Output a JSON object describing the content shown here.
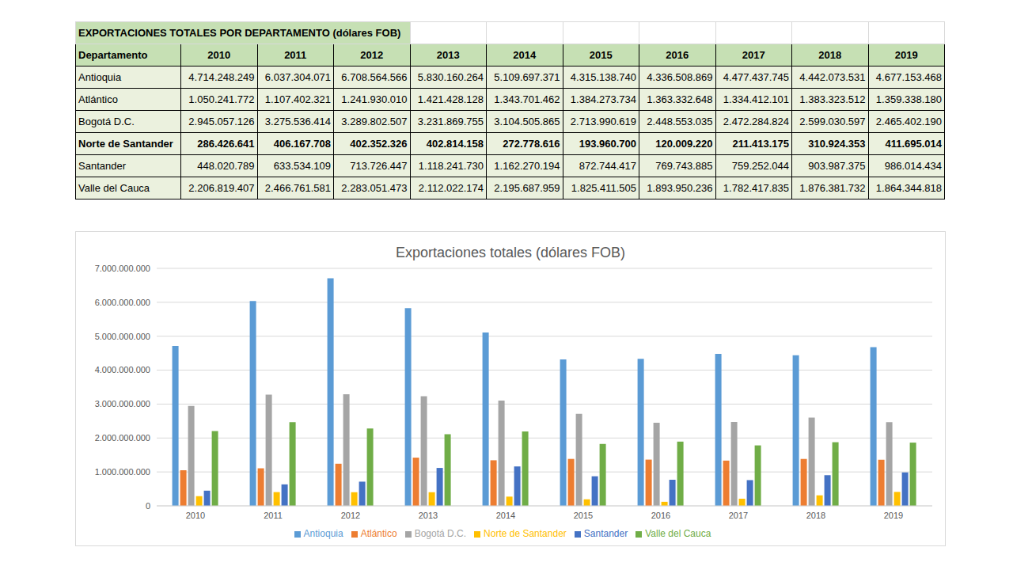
{
  "table": {
    "title": "EXPORTACIONES TOTALES POR DEPARTAMENTO (dólares FOB)",
    "header": [
      "Departamento",
      "2010",
      "2011",
      "2012",
      "2013",
      "2014",
      "2015",
      "2016",
      "2017",
      "2018",
      "2019"
    ],
    "rows": [
      {
        "cells": [
          "Antioquia",
          "4.714.248.249",
          "6.037.304.071",
          "6.708.564.566",
          "5.830.160.264",
          "5.109.697.371",
          "4.315.138.740",
          "4.336.508.869",
          "4.477.437.745",
          "4.442.073.531",
          "4.677.153.468"
        ],
        "bold": false
      },
      {
        "cells": [
          "Atlántico",
          "1.050.241.772",
          "1.107.402.321",
          "1.241.930.010",
          "1.421.428.128",
          "1.343.701.462",
          "1.384.273.734",
          "1.363.332.648",
          "1.334.412.101",
          "1.383.323.512",
          "1.359.338.180"
        ],
        "bold": false
      },
      {
        "cells": [
          "Bogotá D.C.",
          "2.945.057.126",
          "3.275.536.414",
          "3.289.802.507",
          "3.231.869.755",
          "3.104.505.865",
          "2.713.990.619",
          "2.448.553.035",
          "2.472.284.824",
          "2.599.030.597",
          "2.465.402.190"
        ],
        "bold": false
      },
      {
        "cells": [
          "Norte de Santander",
          "286.426.641",
          "406.167.708",
          "402.352.326",
          "402.814.158",
          "272.778.616",
          "193.960.700",
          "120.009.220",
          "211.413.175",
          "310.924.353",
          "411.695.014"
        ],
        "bold": true
      },
      {
        "cells": [
          "Santander",
          "448.020.789",
          "633.534.109",
          "713.726.447",
          "1.118.241.730",
          "1.162.270.194",
          "872.744.417",
          "769.743.885",
          "759.252.044",
          "903.987.375",
          "986.014.434"
        ],
        "bold": false
      },
      {
        "cells": [
          "Valle del Cauca",
          "2.206.819.407",
          "2.466.761.581",
          "2.283.051.473",
          "2.112.022.174",
          "2.195.687.959",
          "1.825.411.505",
          "1.893.950.236",
          "1.782.417.835",
          "1.876.381.732",
          "1.864.344.818"
        ],
        "bold": false
      }
    ]
  },
  "chart_data": {
    "type": "bar",
    "title": "Exportaciones totales (dólares FOB)",
    "categories": [
      "2010",
      "2011",
      "2012",
      "2013",
      "2014",
      "2015",
      "2016",
      "2017",
      "2018",
      "2019"
    ],
    "series": [
      {
        "name": "Antioquia",
        "color": "#5B9BD5",
        "values": [
          4714248249,
          6037304071,
          6708564566,
          5830160264,
          5109697371,
          4315138740,
          4336508869,
          4477437745,
          4442073531,
          4677153468
        ]
      },
      {
        "name": "Atlántico",
        "color": "#ED7D31",
        "values": [
          1050241772,
          1107402321,
          1241930010,
          1421428128,
          1343701462,
          1384273734,
          1363332648,
          1334412101,
          1383323512,
          1359338180
        ]
      },
      {
        "name": "Bogotá D.C.",
        "color": "#A5A5A5",
        "values": [
          2945057126,
          3275536414,
          3289802507,
          3231869755,
          3104505865,
          2713990619,
          2448553035,
          2472284824,
          2599030597,
          2465402190
        ]
      },
      {
        "name": "Norte de Santander",
        "color": "#FFC000",
        "values": [
          286426641,
          406167708,
          402352326,
          402814158,
          272778616,
          193960700,
          120009220,
          211413175,
          310924353,
          411695014
        ]
      },
      {
        "name": "Santander",
        "color": "#4472C4",
        "values": [
          448020789,
          633534109,
          713726447,
          1118241730,
          1162270194,
          872744417,
          769743885,
          759252044,
          903987375,
          986014434
        ]
      },
      {
        "name": "Valle del Cauca",
        "color": "#70AD47",
        "values": [
          2206819407,
          2466761581,
          2283051473,
          2112022174,
          2195687959,
          1825411505,
          1893950236,
          1782417835,
          1876381732,
          1864344818
        ]
      }
    ],
    "ylim": [
      0,
      7000000000
    ],
    "yticks": [
      0,
      {
        "value": 1000000000,
        "label": "1.000.000.000"
      },
      {
        "value": 2000000000,
        "label": "2.000.000.000"
      },
      {
        "value": 3000000000,
        "label": "3.000.000.000"
      },
      {
        "value": 4000000000,
        "label": "4.000.000.000"
      },
      {
        "value": 5000000000,
        "label": "5.000.000.000"
      },
      {
        "value": 6000000000,
        "label": "6.000.000.000"
      },
      {
        "value": 7000000000,
        "label": "7.000.000.000"
      }
    ],
    "grid": true,
    "legend": "bottom"
  }
}
